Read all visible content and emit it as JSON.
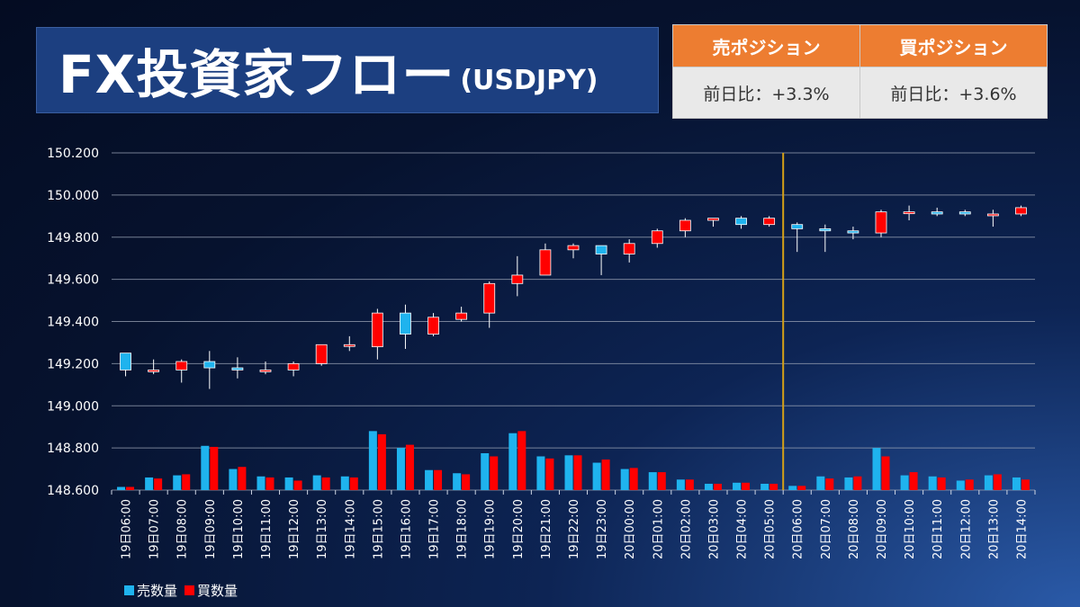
{
  "header": {
    "title": "FX投資家フロー",
    "subtitle": "(USDJPY)"
  },
  "positions": {
    "sell_label": "売ポジション",
    "buy_label": "買ポジション",
    "sell_change": "前日比：+3.3%",
    "buy_change": "前日比：+3.6%"
  },
  "colors": {
    "sell": "#1fb3ee",
    "buy": "#ff0000",
    "separator": "#d4a017",
    "grid": "#9aa3b5"
  },
  "chart_data": {
    "type": "candlestick+bar",
    "ylim": [
      148.6,
      150.2
    ],
    "yticks": [
      "150.200",
      "150.000",
      "149.800",
      "149.600",
      "149.400",
      "149.200",
      "149.000",
      "148.800",
      "148.600"
    ],
    "separator_after": "20日05:00",
    "categories": [
      "19日06:00",
      "19日07:00",
      "19日08:00",
      "19日09:00",
      "19日10:00",
      "19日11:00",
      "19日12:00",
      "19日13:00",
      "19日14:00",
      "19日15:00",
      "19日16:00",
      "19日17:00",
      "19日18:00",
      "19日19:00",
      "19日20:00",
      "19日21:00",
      "19日22:00",
      "19日23:00",
      "20日00:00",
      "20日01:00",
      "20日02:00",
      "20日03:00",
      "20日04:00",
      "20日05:00",
      "20日06:00",
      "20日07:00",
      "20日08:00",
      "20日09:00",
      "20日10:00",
      "20日11:00",
      "20日12:00",
      "20日13:00",
      "20日14:00"
    ],
    "candles": [
      {
        "o": 149.25,
        "h": 149.25,
        "l": 149.14,
        "c": 149.17
      },
      {
        "o": 149.17,
        "h": 149.22,
        "l": 149.15,
        "c": 149.17
      },
      {
        "o": 149.17,
        "h": 149.22,
        "l": 149.11,
        "c": 149.21
      },
      {
        "o": 149.21,
        "h": 149.26,
        "l": 149.08,
        "c": 149.18
      },
      {
        "o": 149.18,
        "h": 149.23,
        "l": 149.13,
        "c": 149.17
      },
      {
        "o": 149.17,
        "h": 149.21,
        "l": 149.15,
        "c": 149.17
      },
      {
        "o": 149.17,
        "h": 149.21,
        "l": 149.14,
        "c": 149.2
      },
      {
        "o": 149.2,
        "h": 149.29,
        "l": 149.19,
        "c": 149.29
      },
      {
        "o": 149.29,
        "h": 149.33,
        "l": 149.26,
        "c": 149.29
      },
      {
        "o": 149.28,
        "h": 149.46,
        "l": 149.22,
        "c": 149.44
      },
      {
        "o": 149.44,
        "h": 149.48,
        "l": 149.27,
        "c": 149.34
      },
      {
        "o": 149.34,
        "h": 149.44,
        "l": 149.33,
        "c": 149.42
      },
      {
        "o": 149.41,
        "h": 149.47,
        "l": 149.4,
        "c": 149.44
      },
      {
        "o": 149.44,
        "h": 149.59,
        "l": 149.37,
        "c": 149.58
      },
      {
        "o": 149.58,
        "h": 149.71,
        "l": 149.52,
        "c": 149.62
      },
      {
        "o": 149.62,
        "h": 149.77,
        "l": 149.62,
        "c": 149.74
      },
      {
        "o": 149.74,
        "h": 149.77,
        "l": 149.7,
        "c": 149.76
      },
      {
        "o": 149.76,
        "h": 149.76,
        "l": 149.62,
        "c": 149.72
      },
      {
        "o": 149.72,
        "h": 149.79,
        "l": 149.68,
        "c": 149.77
      },
      {
        "o": 149.77,
        "h": 149.84,
        "l": 149.75,
        "c": 149.83
      },
      {
        "o": 149.83,
        "h": 149.89,
        "l": 149.8,
        "c": 149.88
      },
      {
        "o": 149.88,
        "h": 149.89,
        "l": 149.85,
        "c": 149.89
      },
      {
        "o": 149.89,
        "h": 149.9,
        "l": 149.84,
        "c": 149.86
      },
      {
        "o": 149.86,
        "h": 149.9,
        "l": 149.85,
        "c": 149.89
      },
      {
        "o": 149.86,
        "h": 149.87,
        "l": 149.73,
        "c": 149.84
      },
      {
        "o": 149.84,
        "h": 149.86,
        "l": 149.73,
        "c": 149.83
      },
      {
        "o": 149.83,
        "h": 149.85,
        "l": 149.79,
        "c": 149.82
      },
      {
        "o": 149.82,
        "h": 149.93,
        "l": 149.8,
        "c": 149.92
      },
      {
        "o": 149.92,
        "h": 149.95,
        "l": 149.88,
        "c": 149.92
      },
      {
        "o": 149.92,
        "h": 149.94,
        "l": 149.9,
        "c": 149.91
      },
      {
        "o": 149.92,
        "h": 149.93,
        "l": 149.9,
        "c": 149.91
      },
      {
        "o": 149.91,
        "h": 149.93,
        "l": 149.85,
        "c": 149.91
      },
      {
        "o": 149.91,
        "h": 149.95,
        "l": 149.9,
        "c": 149.94
      }
    ],
    "series": [
      {
        "name": "売数量",
        "values": [
          148.615,
          148.66,
          148.67,
          148.81,
          148.7,
          148.665,
          148.66,
          148.67,
          148.665,
          148.88,
          148.8,
          148.695,
          148.68,
          148.775,
          148.87,
          148.76,
          148.765,
          148.73,
          148.7,
          148.685,
          148.65,
          148.63,
          148.635,
          148.63,
          148.62,
          148.665,
          148.66,
          148.8,
          148.67,
          148.665,
          148.645,
          148.67,
          148.66
        ]
      },
      {
        "name": "買数量",
        "values": [
          148.615,
          148.655,
          148.675,
          148.805,
          148.71,
          148.66,
          148.645,
          148.66,
          148.66,
          148.865,
          148.815,
          148.695,
          148.675,
          148.76,
          148.88,
          148.75,
          148.765,
          148.745,
          148.705,
          148.685,
          148.65,
          148.63,
          148.635,
          148.63,
          148.62,
          148.655,
          148.665,
          148.76,
          148.685,
          148.66,
          148.65,
          148.675,
          148.65
        ]
      }
    ]
  },
  "legend": {
    "sell": "売数量",
    "buy": "買数量"
  }
}
